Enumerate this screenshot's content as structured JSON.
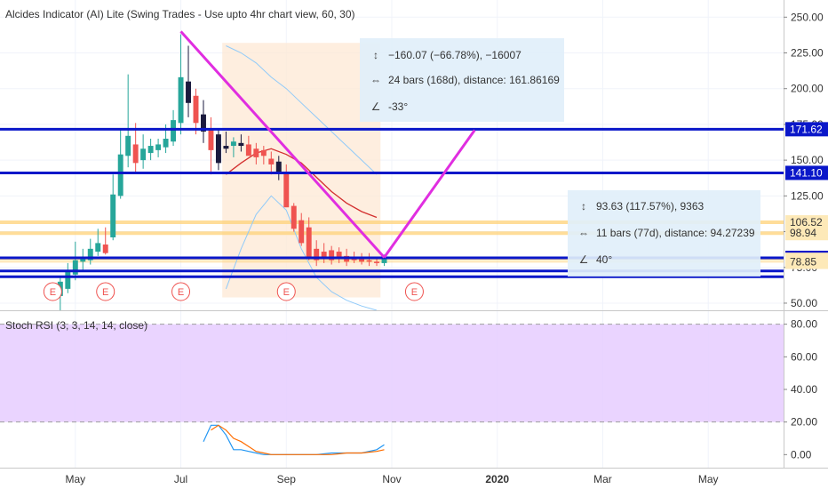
{
  "title": "Alcides Indicator (AI) Lite (Swing Trades - Use upto 4hr chart view, 60, 30)",
  "stoch_title": "Stoch RSI (3, 3, 14, 14, close)",
  "colors": {
    "up": "#26a69a",
    "down": "#ef5350",
    "dark_candle": "#1a1a3e",
    "level_line": "#0a17c9",
    "zone_line": "#ffd580",
    "pattern": "#e02ee0",
    "ema": "#d32f2f",
    "band": "#90caf9",
    "stoch_k": "#2196f3",
    "stoch_d": "#ff6d00",
    "stoch_fill": "#e6ccff"
  },
  "measure_down": {
    "price_range": "−160.07 (−66.78%), −16007",
    "bars_range": "24 bars (168d), distance: 161.86169",
    "angle": "-33°",
    "price_icon": "price-range-icon",
    "bars_icon": "bars-range-icon",
    "angle_icon": "angle-icon"
  },
  "measure_up": {
    "price_range": "93.63 (117.57%), 9363",
    "bars_range": "11 bars (77d), distance: 94.27239",
    "angle": "40°",
    "price_icon": "price-range-icon",
    "bars_icon": "bars-range-icon",
    "angle_icon": "angle-icon"
  },
  "chart_data": [
    {
      "type": "candlestick",
      "title": "",
      "x_axis_labels": [
        "May",
        "Jul",
        "Sep",
        "Nov",
        "2020",
        "Mar",
        "May"
      ],
      "x_label_positions": [
        10,
        24,
        38,
        52,
        66,
        80,
        94
      ],
      "y_axis_ticks": [
        50,
        75,
        100,
        125,
        150,
        175,
        200,
        225,
        250
      ],
      "y_tick_labels": [
        "50.00",
        "75.00",
        "100.00",
        "125.00",
        "150.00",
        "175.00",
        "200.00",
        "225.00",
        "250.00"
      ],
      "ylim": [
        45,
        262
      ],
      "xlim": [
        0,
        104
      ],
      "grid": true,
      "candles": [
        {
          "i": 8,
          "o": 55,
          "h": 68,
          "l": 45,
          "c": 65
        },
        {
          "i": 9,
          "o": 60,
          "h": 78,
          "l": 57,
          "c": 72
        },
        {
          "i": 10,
          "o": 70,
          "h": 93,
          "l": 66,
          "c": 80
        },
        {
          "i": 11,
          "o": 79,
          "h": 88,
          "l": 72,
          "c": 82
        },
        {
          "i": 12,
          "o": 80,
          "h": 95,
          "l": 77,
          "c": 88
        },
        {
          "i": 13,
          "o": 86,
          "h": 102,
          "l": 83,
          "c": 92
        },
        {
          "i": 14,
          "o": 91,
          "h": 103,
          "l": 84,
          "c": 85
        },
        {
          "i": 15,
          "o": 96,
          "h": 140,
          "l": 94,
          "c": 126
        },
        {
          "i": 16,
          "o": 125,
          "h": 172,
          "l": 123,
          "c": 154
        },
        {
          "i": 17,
          "o": 153,
          "h": 210,
          "l": 145,
          "c": 167
        },
        {
          "i": 18,
          "o": 161,
          "h": 176,
          "l": 142,
          "c": 148
        },
        {
          "i": 19,
          "o": 150,
          "h": 168,
          "l": 144,
          "c": 158
        },
        {
          "i": 20,
          "o": 155,
          "h": 165,
          "l": 150,
          "c": 160
        },
        {
          "i": 21,
          "o": 157,
          "h": 165,
          "l": 152,
          "c": 161
        },
        {
          "i": 22,
          "o": 159,
          "h": 175,
          "l": 155,
          "c": 165
        },
        {
          "i": 23,
          "o": 163,
          "h": 185,
          "l": 160,
          "c": 178
        },
        {
          "i": 24,
          "o": 176,
          "h": 238,
          "l": 168,
          "c": 208
        },
        {
          "i": 25,
          "o": 205,
          "h": 230,
          "l": 180,
          "c": 190
        },
        {
          "i": 26,
          "o": 195,
          "h": 200,
          "l": 168,
          "c": 176
        },
        {
          "i": 27,
          "o": 182,
          "h": 192,
          "l": 162,
          "c": 170
        },
        {
          "i": 28,
          "o": 172,
          "h": 180,
          "l": 140,
          "c": 157
        },
        {
          "i": 29,
          "o": 168,
          "h": 172,
          "l": 143,
          "c": 148
        },
        {
          "i": 30,
          "o": 160,
          "h": 170,
          "l": 155,
          "c": 158
        },
        {
          "i": 31,
          "o": 160,
          "h": 166,
          "l": 152,
          "c": 163
        },
        {
          "i": 32,
          "o": 162,
          "h": 168,
          "l": 156,
          "c": 160
        },
        {
          "i": 33,
          "o": 161,
          "h": 167,
          "l": 155,
          "c": 153
        },
        {
          "i": 34,
          "o": 158,
          "h": 162,
          "l": 147,
          "c": 152
        },
        {
          "i": 35,
          "o": 157,
          "h": 160,
          "l": 147,
          "c": 153
        },
        {
          "i": 36,
          "o": 151,
          "h": 156,
          "l": 140,
          "c": 147
        },
        {
          "i": 37,
          "o": 149,
          "h": 153,
          "l": 136,
          "c": 141
        },
        {
          "i": 38,
          "o": 142,
          "h": 147,
          "l": 118,
          "c": 117
        },
        {
          "i": 39,
          "o": 118,
          "h": 120,
          "l": 100,
          "c": 102
        },
        {
          "i": 40,
          "o": 108,
          "h": 113,
          "l": 90,
          "c": 92
        },
        {
          "i": 41,
          "o": 103,
          "h": 110,
          "l": 80,
          "c": 82
        },
        {
          "i": 42,
          "o": 88,
          "h": 94,
          "l": 76,
          "c": 80
        },
        {
          "i": 43,
          "o": 86,
          "h": 92,
          "l": 78,
          "c": 82
        },
        {
          "i": 44,
          "o": 87,
          "h": 90,
          "l": 77,
          "c": 80
        },
        {
          "i": 45,
          "o": 86,
          "h": 89,
          "l": 78,
          "c": 81
        },
        {
          "i": 46,
          "o": 83,
          "h": 88,
          "l": 76,
          "c": 79
        },
        {
          "i": 47,
          "o": 82,
          "h": 86,
          "l": 78,
          "c": 80
        },
        {
          "i": 48,
          "o": 81,
          "h": 85,
          "l": 77,
          "c": 79
        },
        {
          "i": 49,
          "o": 80,
          "h": 85,
          "l": 76,
          "c": 79
        },
        {
          "i": 50,
          "o": 79,
          "h": 82,
          "l": 76,
          "c": 78
        },
        {
          "i": 51,
          "o": 78,
          "h": 84,
          "l": 76,
          "c": 82
        }
      ],
      "dark_candle_indices": [
        25,
        27,
        29,
        30,
        32,
        37
      ],
      "horizontal_levels": [
        {
          "value": 171.62,
          "label": "171.62",
          "style": "level"
        },
        {
          "value": 141.1,
          "label": "141.10",
          "style": "level"
        },
        {
          "value": 81.69,
          "label": "81.69",
          "style": "level"
        },
        {
          "value": 72.5,
          "label": "",
          "style": "level"
        },
        {
          "value": 68.5,
          "label": "",
          "style": "level"
        },
        {
          "value": 106.52,
          "label": "106.52",
          "style": "zone"
        },
        {
          "value": 98.94,
          "label": "98.94",
          "style": "zone"
        },
        {
          "value": 80.34,
          "label": "80.34",
          "style": "zone_small"
        },
        {
          "value": 78.85,
          "label": "78.85",
          "style": "zone_small"
        }
      ],
      "pattern_lines": [
        {
          "from": [
            24,
            240
          ],
          "to": [
            51,
            82
          ]
        },
        {
          "from": [
            51,
            82
          ],
          "to": [
            63,
            171
          ]
        }
      ],
      "ema_line": {
        "x": [
          30,
          32,
          34,
          36,
          38,
          40,
          42,
          44,
          46,
          48,
          50
        ],
        "y": [
          140,
          148,
          155,
          158,
          154,
          148,
          138,
          128,
          120,
          114,
          110
        ]
      },
      "band_upper": {
        "x": [
          30,
          32,
          34,
          36,
          38,
          40,
          42,
          44,
          46,
          48,
          50
        ],
        "y": [
          230,
          225,
          218,
          208,
          200,
          190,
          180,
          170,
          160,
          150,
          140
        ]
      },
      "band_lower": {
        "x": [
          30,
          32,
          34,
          36,
          38,
          40,
          42,
          44,
          46,
          48,
          50
        ],
        "y": [
          60,
          88,
          112,
          125,
          115,
          88,
          68,
          58,
          52,
          48,
          45
        ]
      },
      "shaded_zone": {
        "x_from": 29.5,
        "x_to": 50.5,
        "y_from": 54,
        "y_to": 232
      },
      "earnings_markers": {
        "x": [
          7,
          14,
          24,
          38,
          55
        ],
        "label": "E"
      }
    },
    {
      "type": "line",
      "title": "Stoch RSI (3, 3, 14, 14, close)",
      "y_axis_ticks": [
        0,
        20,
        40,
        60,
        80
      ],
      "y_tick_labels": [
        "0.00",
        "20.00",
        "40.00",
        "60.00",
        "80.00"
      ],
      "ylim": [
        -8,
        88
      ],
      "overbought": 80,
      "oversold": 20,
      "series": [
        {
          "name": "K",
          "x": [
            27,
            28,
            29,
            30,
            31,
            32,
            33,
            34,
            35,
            36,
            37,
            38,
            40,
            42,
            44,
            46,
            48,
            50,
            51
          ],
          "values": [
            8,
            18,
            18,
            12,
            3,
            3,
            2,
            1,
            0,
            0,
            0,
            0,
            0,
            0,
            1,
            1,
            1,
            3,
            6
          ]
        },
        {
          "name": "D",
          "x": [
            28,
            29,
            30,
            31,
            32,
            33,
            34,
            35,
            36,
            37,
            38,
            40,
            42,
            44,
            46,
            48,
            50,
            51
          ],
          "values": [
            15,
            18,
            15,
            10,
            8,
            5,
            2,
            1,
            0,
            0,
            0,
            0,
            0,
            0,
            1,
            1,
            2,
            3
          ]
        }
      ]
    }
  ]
}
